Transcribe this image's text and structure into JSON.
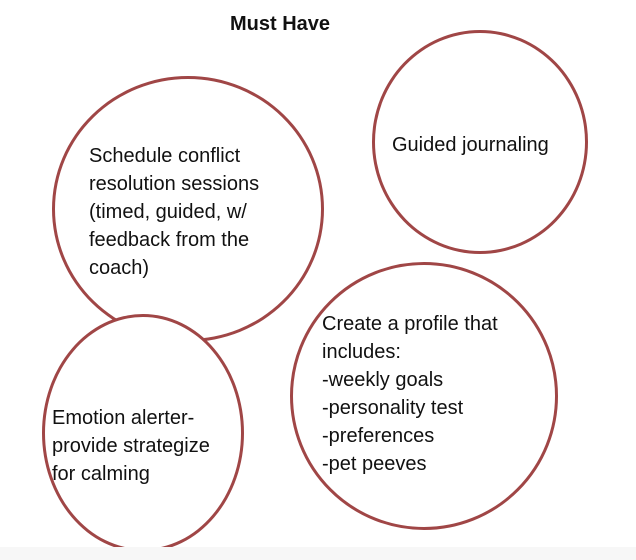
{
  "title": "Must Have",
  "accent_color": "#a04646",
  "bubbles": [
    {
      "text": "Schedule conflict\nresolution sessions\n(timed, guided, w/\nfeedback from the\ncoach)"
    },
    {
      "text": "Guided journaling"
    },
    {
      "text": "Create a profile that\nincludes:\n-weekly goals\n-personality test\n-preferences\n-pet peeves"
    },
    {
      "text": "Emotion alerter-\nprovide strategize\nfor calming"
    }
  ]
}
